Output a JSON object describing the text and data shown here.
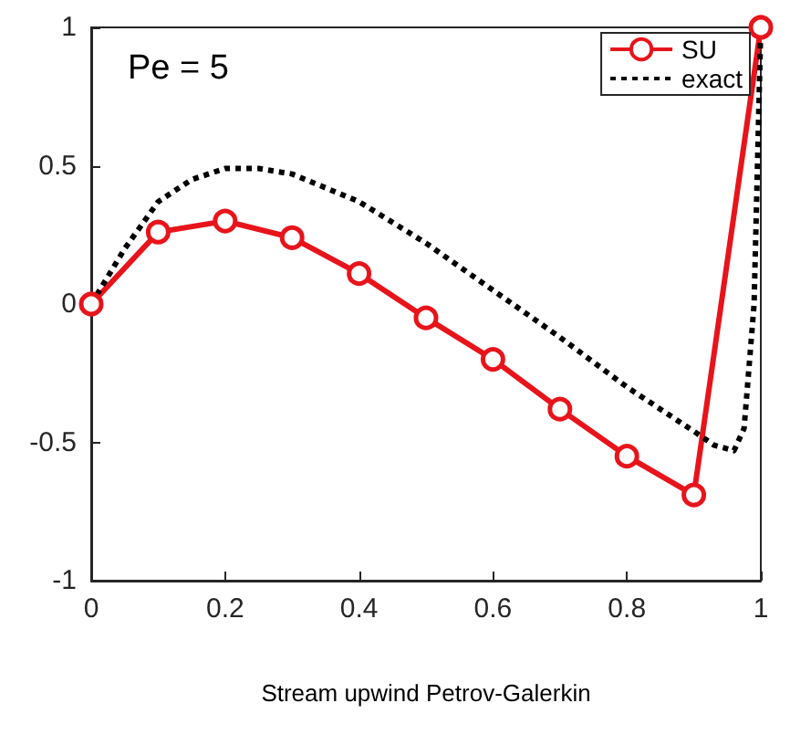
{
  "chart_data": {
    "type": "line",
    "xlabel": "Stream upwind Petrov-Galerkin",
    "annotations": [
      "Pe = 5"
    ],
    "xlim": [
      0,
      1
    ],
    "xticks": [
      0,
      0.2,
      0.4,
      0.6,
      0.8,
      1
    ],
    "ylim": [
      -1,
      1
    ],
    "yticks": [
      -1,
      -0.5,
      0,
      0.5,
      1
    ],
    "grid": false,
    "legend": "top right",
    "series": [
      {
        "name": "SU",
        "color": "#e8141b",
        "marker": "circle",
        "line_style": "solid",
        "x": [
          0,
          0.1,
          0.2,
          0.3,
          0.4,
          0.5,
          0.6,
          0.7,
          0.8,
          0.9,
          1
        ],
        "values": [
          0,
          0.26,
          0.3,
          0.24,
          0.11,
          -0.05,
          -0.2,
          -0.38,
          -0.55,
          -0.69,
          1
        ]
      },
      {
        "name": "exact",
        "color": "#000000",
        "marker": "none",
        "line_style": "dotted",
        "x": [
          0,
          0.05,
          0.1,
          0.15,
          0.2,
          0.25,
          0.3,
          0.4,
          0.5,
          0.6,
          0.7,
          0.8,
          0.85,
          0.9,
          0.93,
          0.96,
          0.975,
          0.99,
          1
        ],
        "values": [
          0,
          0.2,
          0.37,
          0.45,
          0.49,
          0.49,
          0.47,
          0.37,
          0.22,
          0.05,
          -0.12,
          -0.3,
          -0.38,
          -0.46,
          -0.51,
          -0.53,
          -0.45,
          0,
          1
        ]
      }
    ]
  }
}
